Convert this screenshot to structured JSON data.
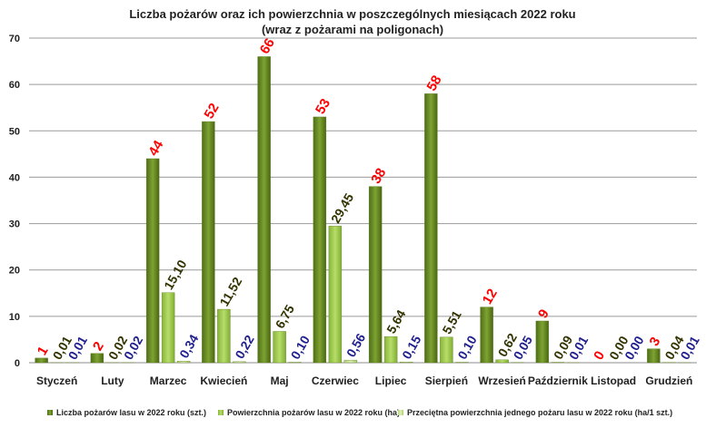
{
  "chart_data": {
    "type": "bar",
    "title": "Liczba pożarów oraz ich powierzchnia w poszczególnych miesiącach 2022 roku",
    "subtitle": "(wraz z pożarami na poligonach)",
    "categories": [
      "Styczeń",
      "Luty",
      "Marzec",
      "Kwiecień",
      "Maj",
      "Czerwiec",
      "Lipiec",
      "Sierpień",
      "Wrzesień",
      "Październik",
      "Listopad",
      "Grudzień"
    ],
    "ylim": [
      0,
      70
    ],
    "yticks": [
      "0",
      "10",
      "20",
      "30",
      "40",
      "50",
      "60",
      "70"
    ],
    "grid": true,
    "legend_position": "bottom",
    "series": [
      {
        "name": "Liczba pożarów lasu w 2022 roku (szt.)",
        "values": [
          1,
          2,
          44,
          52,
          66,
          53,
          38,
          58,
          12,
          9,
          0,
          3
        ],
        "labels": [
          "1",
          "2",
          "44",
          "52",
          "66",
          "53",
          "38",
          "58",
          "12",
          "9",
          "0",
          "3"
        ],
        "color": "#6b8e23",
        "label_color": "#ff0000"
      },
      {
        "name": "Powierzchnia pożarów lasu w 2022 roku (ha)",
        "values": [
          0.01,
          0.02,
          15.1,
          11.52,
          6.75,
          29.45,
          5.64,
          5.51,
          0.62,
          0.09,
          0.0,
          0.04
        ],
        "labels": [
          "0,01",
          "0,02",
          "15,10",
          "11,52",
          "6,75",
          "29,45",
          "5,64",
          "5,51",
          "0,62",
          "0,09",
          "0,00",
          "0,04"
        ],
        "color": "#9acd32",
        "label_color": "#333300"
      },
      {
        "name": "Przeciętna powierzchnia jednego pożaru lasu w 2022 roku (ha/1 szt.)",
        "values": [
          0.01,
          0.02,
          0.34,
          0.22,
          0.1,
          0.56,
          0.15,
          0.1,
          0.05,
          0.01,
          0.0,
          0.01
        ],
        "labels": [
          "0,01",
          "0,02",
          "0,34",
          "0,22",
          "0,10",
          "0,56",
          "0,15",
          "0,10",
          "0,05",
          "0,01",
          "0,00",
          "0,01"
        ],
        "color": "#c8e08a",
        "label_color": "#1f1f8f"
      }
    ]
  }
}
